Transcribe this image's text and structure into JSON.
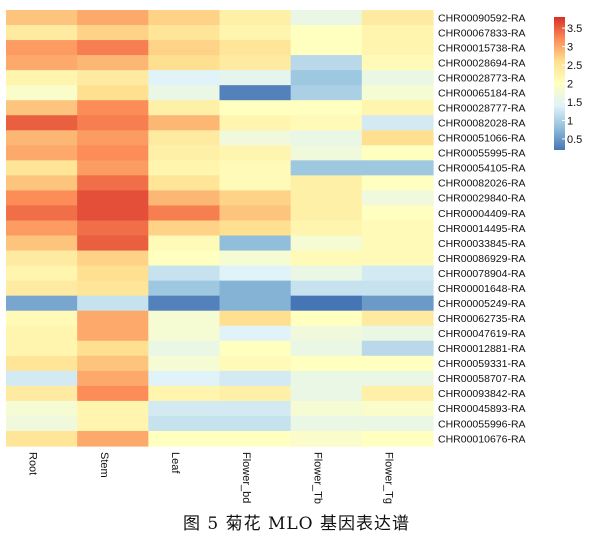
{
  "caption": "图 5   菊花 MLO 基因表达谱",
  "chart_data": {
    "type": "heatmap",
    "columns": [
      "Root",
      "Stem",
      "Leaf",
      "Flower_bd",
      "Flower_Tb",
      "Flower_Tg"
    ],
    "rows": [
      "CHR00090592-RA",
      "CHR00067833-RA",
      "CHR00015738-RA",
      "CHR00028694-RA",
      "CHR00028773-RA",
      "CHR00065184-RA",
      "CHR00028777-RA",
      "CHR00082028-RA",
      "CHR00051066-RA",
      "CHR00055995-RA",
      "CHR00054105-RA",
      "CHR00082026-RA",
      "CHR00029840-RA",
      "CHR00004409-RA",
      "CHR00014495-RA",
      "CHR00033845-RA",
      "CHR00086929-RA",
      "CHR00078904-RA",
      "CHR00001648-RA",
      "CHR00005249-RA",
      "CHR00062735-RA",
      "CHR00047619-RA",
      "CHR00012881-RA",
      "CHR00059331-RA",
      "CHR00058707-RA",
      "CHR00093842-RA",
      "CHR00045893-RA",
      "CHR00055996-RA",
      "CHR00010676-RA"
    ],
    "values": [
      [
        2.8,
        3.0,
        2.7,
        2.3,
        1.6,
        2.4
      ],
      [
        2.4,
        2.7,
        2.5,
        2.2,
        2.0,
        2.2
      ],
      [
        3.1,
        3.3,
        2.7,
        2.5,
        2.0,
        2.2
      ],
      [
        3.0,
        2.9,
        2.6,
        2.4,
        1.1,
        2.1
      ],
      [
        2.2,
        2.4,
        1.4,
        1.5,
        0.9,
        1.6
      ],
      [
        1.9,
        2.6,
        1.6,
        0.3,
        1.0,
        1.8
      ],
      [
        2.8,
        3.2,
        2.3,
        2.0,
        2.0,
        2.2
      ],
      [
        3.5,
        3.3,
        2.9,
        2.2,
        2.1,
        1.3
      ],
      [
        2.9,
        3.1,
        2.4,
        1.7,
        1.6,
        2.6
      ],
      [
        3.0,
        3.2,
        2.3,
        2.2,
        1.7,
        2.0
      ],
      [
        2.5,
        3.1,
        2.2,
        2.1,
        0.9,
        0.9
      ],
      [
        2.8,
        3.4,
        2.5,
        2.1,
        2.3,
        2.0
      ],
      [
        3.2,
        3.6,
        2.9,
        2.7,
        2.3,
        1.7
      ],
      [
        3.4,
        3.6,
        3.3,
        2.8,
        2.3,
        2.0
      ],
      [
        3.1,
        3.4,
        2.7,
        2.6,
        2.2,
        2.1
      ],
      [
        2.8,
        3.5,
        2.1,
        0.8,
        1.8,
        2.1
      ],
      [
        2.4,
        2.7,
        2.0,
        1.8,
        2.1,
        2.1
      ],
      [
        2.2,
        2.6,
        1.2,
        1.4,
        1.6,
        1.3
      ],
      [
        2.4,
        2.5,
        0.9,
        0.7,
        1.2,
        1.2
      ],
      [
        0.6,
        1.2,
        0.3,
        0.7,
        0.2,
        0.5
      ],
      [
        2.1,
        3.0,
        1.8,
        2.6,
        2.0,
        2.4
      ],
      [
        2.2,
        3.0,
        1.8,
        1.4,
        1.7,
        1.6
      ],
      [
        2.2,
        2.6,
        1.6,
        2.0,
        1.6,
        1.1
      ],
      [
        2.5,
        2.8,
        1.8,
        2.1,
        2.0,
        2.0
      ],
      [
        1.3,
        3.0,
        1.4,
        1.3,
        1.6,
        1.6
      ],
      [
        2.4,
        3.2,
        2.2,
        2.3,
        1.6,
        2.3
      ],
      [
        1.8,
        2.2,
        1.3,
        1.3,
        1.8,
        1.9
      ],
      [
        1.7,
        2.2,
        1.2,
        1.2,
        1.6,
        1.6
      ],
      [
        2.5,
        3.0,
        2.0,
        2.0,
        1.9,
        2.0
      ]
    ],
    "scale": {
      "min": 0.2,
      "max": 3.8,
      "ticks": [
        "3.5",
        "3",
        "2.5",
        "2",
        "1.5",
        "1",
        "0.5"
      ],
      "tick_values": [
        3.5,
        3.0,
        2.5,
        2.0,
        1.5,
        1.0,
        0.5
      ],
      "colors": [
        "#4575b4",
        "#91bfdb",
        "#e0f3f8",
        "#ffffbf",
        "#fee090",
        "#fc8d59",
        "#d73027"
      ]
    },
    "legend_position": "right"
  }
}
